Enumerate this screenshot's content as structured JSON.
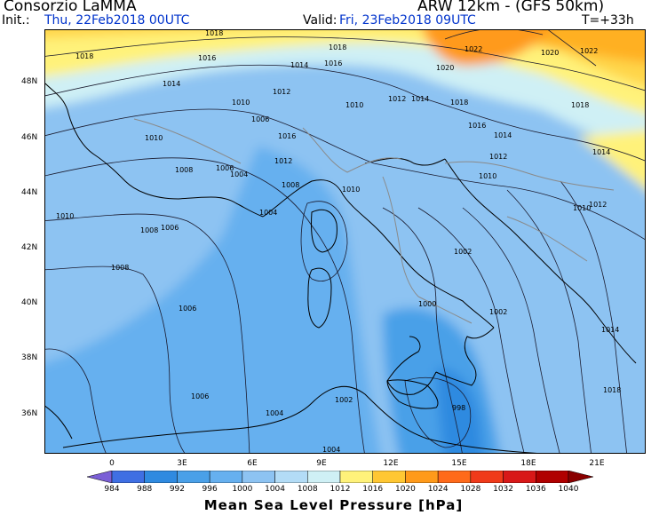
{
  "header": {
    "brand": "Consorzio LaMMA",
    "model": "ARW 12km - (GFS 50km)",
    "init_label": "Init.:",
    "init_value": "Thu, 22Feb2018 00UTC",
    "valid_label": "Valid:",
    "valid_value": "Fri, 23Feb2018 09UTC",
    "lead_time": "T=+33h"
  },
  "latitude_labels": [
    "48N",
    "46N",
    "44N",
    "42N",
    "40N",
    "38N",
    "36N"
  ],
  "longitude_labels": [
    "0",
    "3E",
    "6E",
    "9E",
    "12E",
    "15E",
    "18E",
    "21E"
  ],
  "colorbar": {
    "title": "Mean Sea Level Pressure [hPa]",
    "levels": [
      "984",
      "988",
      "992",
      "996",
      "1000",
      "1004",
      "1008",
      "1012",
      "1016",
      "1020",
      "1024",
      "1028",
      "1032",
      "1036",
      "1040"
    ],
    "colors": [
      "#7b5fd6",
      "#3f6fe3",
      "#2f8ae0",
      "#4aa0e8",
      "#66b0ef",
      "#8dc3f2",
      "#b3dcf6",
      "#cff0f5",
      "#fff27a",
      "#ffc733",
      "#ff9a1a",
      "#ff6a1a",
      "#f03a1a",
      "#d81818",
      "#b00000",
      "#8a0000"
    ]
  },
  "isobar_labels": [
    "1018",
    "1016",
    "1014",
    "1014",
    "1018",
    "1016",
    "1012",
    "1010",
    "1010",
    "1012",
    "1014",
    "1018",
    "1022",
    "1020",
    "1020",
    "1022",
    "1018",
    "1016",
    "1014",
    "1012",
    "1010",
    "1010",
    "1008",
    "1006",
    "1006",
    "1008",
    "1006",
    "1004",
    "1004",
    "1006",
    "1008",
    "1008",
    "1006",
    "1002",
    "1002",
    "1000",
    "998",
    "1002",
    "1004",
    "1004",
    "1010",
    "1012",
    "1010",
    "1010",
    "1012",
    "1014",
    "1016",
    "1018",
    "1014",
    "1018"
  ],
  "colors": {
    "land_line": "#000000",
    "border_line": "#8a8a8a",
    "isobar_line": "#1a1a2e"
  }
}
